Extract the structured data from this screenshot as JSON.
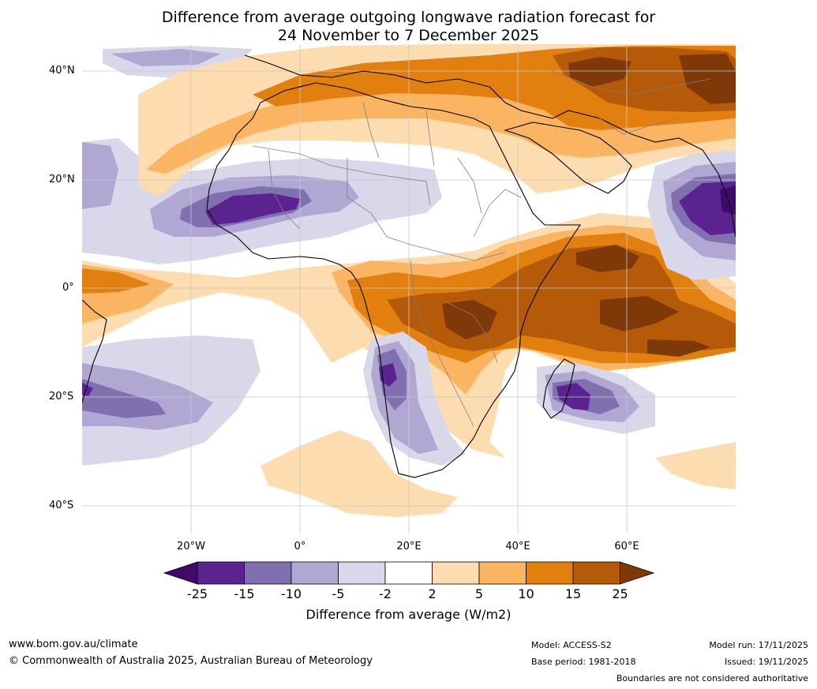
{
  "title": {
    "line1": "Difference from average outgoing longwave radiation forecast for",
    "line2": "24 November to 7 December 2025"
  },
  "map": {
    "lat_labels": [
      "40°N",
      "20°N",
      "0°",
      "20°S",
      "40°S"
    ],
    "lon_labels": [
      "20°W",
      "0°",
      "20°E",
      "40°E",
      "60°E"
    ],
    "lat_values": [
      40,
      20,
      0,
      -20,
      -40
    ],
    "lon_values": [
      -20,
      0,
      20,
      40,
      60
    ]
  },
  "colorbar": {
    "ticks": [
      "-25",
      "-15",
      "-10",
      "-5",
      "-2",
      "2",
      "5",
      "10",
      "15",
      "25"
    ],
    "colors": [
      "#3f0a68",
      "#5a2390",
      "#8070b0",
      "#b0a8d2",
      "#d8d8ea",
      "#ffffff",
      "#fddcb0",
      "#fbb462",
      "#e2800f",
      "#b45a08",
      "#7f3908"
    ],
    "label": "Difference from average (W/m2)"
  },
  "footer": {
    "url": "www.bom.gov.au/climate",
    "copyright": "© Commonwealth of Australia 2025, Australian Bureau of Meteorology",
    "model": "Model: ACCESS-S2",
    "base_period": "Base period: 1981-2018",
    "model_run": "Model run: 17/11/2025",
    "issued": "Issued: 19/11/2025",
    "disclaimer": "Boundaries are not considered authoritative"
  }
}
